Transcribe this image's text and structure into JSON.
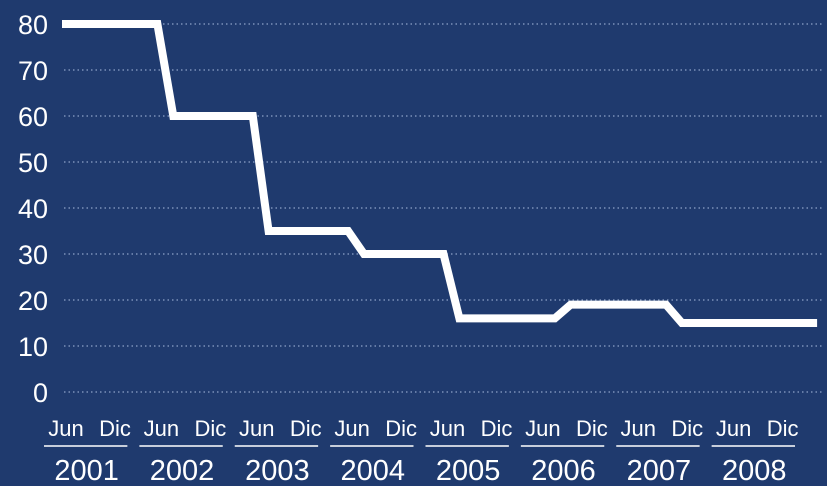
{
  "colors": {
    "background": "#1f3a6e",
    "line": "#ffffff",
    "grid": "#8da2c8",
    "text": "#ffffff"
  },
  "chart_data": {
    "type": "line",
    "title": "",
    "xlabel": "",
    "ylabel": "",
    "ylim": [
      0,
      80
    ],
    "yticks": [
      "0",
      "10",
      "20",
      "30",
      "40",
      "50",
      "60",
      "70",
      "80"
    ],
    "grid": true,
    "step": true,
    "month_labels": [
      "Jun",
      "Dic"
    ],
    "years": [
      "2001",
      "2002",
      "2003",
      "2004",
      "2005",
      "2006",
      "2007",
      "2008"
    ],
    "series": [
      {
        "points": [
          [
            "2001-01",
            80
          ],
          [
            "2002-01",
            80
          ],
          [
            "2002-03",
            60
          ],
          [
            "2003-01",
            60
          ],
          [
            "2003-03",
            35
          ],
          [
            "2004-01",
            35
          ],
          [
            "2004-03",
            30
          ],
          [
            "2005-01",
            30
          ],
          [
            "2005-03",
            16
          ],
          [
            "2006-03",
            16
          ],
          [
            "2006-05",
            19
          ],
          [
            "2007-05",
            19
          ],
          [
            "2007-07",
            15
          ],
          [
            "2008-12",
            15
          ]
        ]
      }
    ]
  }
}
